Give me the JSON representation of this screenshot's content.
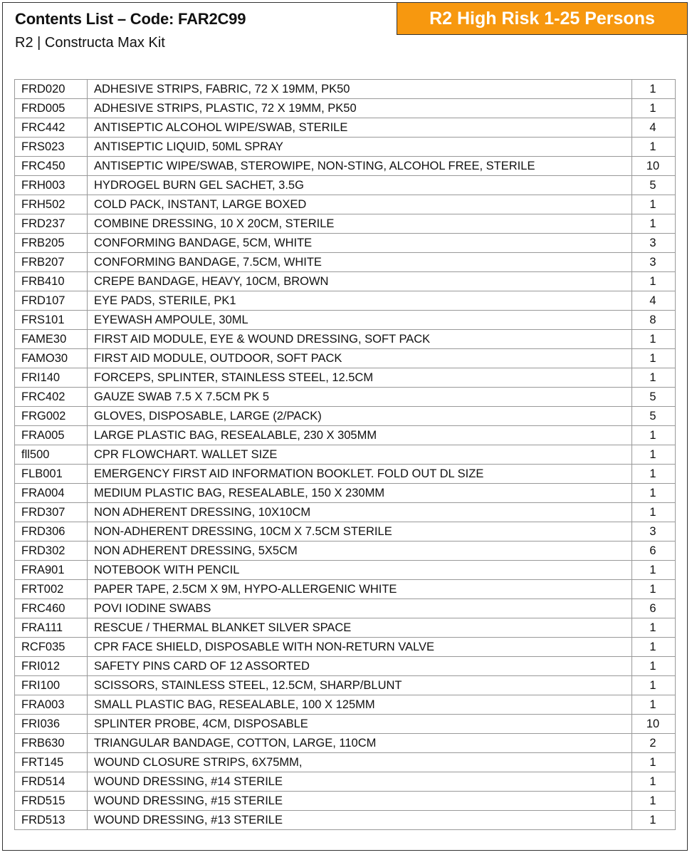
{
  "header": {
    "title": "Contents List – Code: FAR2C99",
    "subtitle": "R2 | Constructa Max Kit",
    "badge": "R2 High Risk 1-25 Persons",
    "badge_color": "#f7980f"
  },
  "items": [
    {
      "code": "FRD020",
      "description": "ADHESIVE STRIPS, FABRIC, 72 X 19MM, PK50",
      "qty": "1"
    },
    {
      "code": "FRD005",
      "description": "ADHESIVE STRIPS, PLASTIC, 72 X 19MM, PK50",
      "qty": "1"
    },
    {
      "code": "FRC442",
      "description": "ANTISEPTIC ALCOHOL WIPE/SWAB, STERILE",
      "qty": "4"
    },
    {
      "code": "FRS023",
      "description": "ANTISEPTIC LIQUID, 50ML SPRAY",
      "qty": "1"
    },
    {
      "code": "FRC450",
      "description": "ANTISEPTIC WIPE/SWAB, STEROWIPE, NON-STING, ALCOHOL FREE, STERILE",
      "qty": "10"
    },
    {
      "code": "FRH003",
      "description": "HYDROGEL BURN GEL SACHET, 3.5G",
      "qty": "5"
    },
    {
      "code": "FRH502",
      "description": "COLD PACK, INSTANT, LARGE BOXED",
      "qty": "1"
    },
    {
      "code": "FRD237",
      "description": "COMBINE DRESSING, 10 X 20CM, STERILE",
      "qty": "1"
    },
    {
      "code": "FRB205",
      "description": "CONFORMING BANDAGE, 5CM, WHITE",
      "qty": "3"
    },
    {
      "code": "FRB207",
      "description": "CONFORMING BANDAGE, 7.5CM, WHITE",
      "qty": "3"
    },
    {
      "code": "FRB410",
      "description": "CREPE BANDAGE, HEAVY, 10CM, BROWN",
      "qty": "1"
    },
    {
      "code": "FRD107",
      "description": "EYE PADS, STERILE, PK1",
      "qty": "4"
    },
    {
      "code": "FRS101",
      "description": "EYEWASH AMPOULE, 30ML",
      "qty": "8"
    },
    {
      "code": "FAME30",
      "description": "FIRST AID MODULE, EYE & WOUND DRESSING, SOFT PACK",
      "qty": "1"
    },
    {
      "code": "FAMO30",
      "description": "FIRST AID MODULE, OUTDOOR, SOFT PACK",
      "qty": "1"
    },
    {
      "code": "FRI140",
      "description": "FORCEPS, SPLINTER, STAINLESS STEEL, 12.5CM",
      "qty": "1"
    },
    {
      "code": "FRC402",
      "description": "GAUZE SWAB 7.5 X 7.5CM PK 5",
      "qty": "5"
    },
    {
      "code": "FRG002",
      "description": "GLOVES, DISPOSABLE, LARGE (2/PACK)",
      "qty": "5"
    },
    {
      "code": "FRA005",
      "description": "LARGE PLASTIC BAG, RESEALABLE, 230 X 305MM",
      "qty": "1"
    },
    {
      "code": "fll500",
      "description": "CPR FLOWCHART. WALLET SIZE",
      "qty": "1"
    },
    {
      "code": "FLB001",
      "description": "EMERGENCY FIRST AID INFORMATION BOOKLET. FOLD OUT DL SIZE",
      "qty": "1"
    },
    {
      "code": "FRA004",
      "description": "MEDIUM PLASTIC BAG, RESEALABLE, 150 X 230MM",
      "qty": "1"
    },
    {
      "code": "FRD307",
      "description": "NON ADHERENT DRESSING, 10X10CM",
      "qty": "1"
    },
    {
      "code": "FRD306",
      "description": "NON-ADHERENT DRESSING, 10CM X 7.5CM STERILE",
      "qty": "3"
    },
    {
      "code": "FRD302",
      "description": "NON ADHERENT DRESSING, 5X5CM",
      "qty": "6"
    },
    {
      "code": "FRA901",
      "description": "NOTEBOOK WITH PENCIL",
      "qty": "1"
    },
    {
      "code": "FRT002",
      "description": "PAPER TAPE, 2.5CM X 9M, HYPO-ALLERGENIC WHITE",
      "qty": "1"
    },
    {
      "code": "FRC460",
      "description": "POVI IODINE SWABS",
      "qty": "6"
    },
    {
      "code": "FRA111",
      "description": "RESCUE / THERMAL BLANKET SILVER SPACE",
      "qty": "1"
    },
    {
      "code": "RCF035",
      "description": "CPR FACE SHIELD, DISPOSABLE WITH NON-RETURN VALVE",
      "qty": "1"
    },
    {
      "code": "FRI012",
      "description": "SAFETY PINS CARD OF 12 ASSORTED",
      "qty": "1"
    },
    {
      "code": "FRI100",
      "description": "SCISSORS, STAINLESS STEEL, 12.5CM, SHARP/BLUNT",
      "qty": "1"
    },
    {
      "code": "FRA003",
      "description": "SMALL PLASTIC BAG, RESEALABLE, 100 X 125MM",
      "qty": "1"
    },
    {
      "code": "FRI036",
      "description": "SPLINTER PROBE, 4CM, DISPOSABLE",
      "qty": "10"
    },
    {
      "code": "FRB630",
      "description": "TRIANGULAR BANDAGE, COTTON, LARGE, 110CM",
      "qty": "2"
    },
    {
      "code": "FRT145",
      "description": "WOUND CLOSURE STRIPS, 6X75MM,",
      "qty": "1"
    },
    {
      "code": "FRD514",
      "description": "WOUND DRESSING, #14 STERILE",
      "qty": "1"
    },
    {
      "code": "FRD515",
      "description": "WOUND DRESSING, #15 STERILE",
      "qty": "1"
    },
    {
      "code": "FRD513",
      "description": "WOUND DRESSING, #13 STERILE",
      "qty": "1"
    }
  ]
}
